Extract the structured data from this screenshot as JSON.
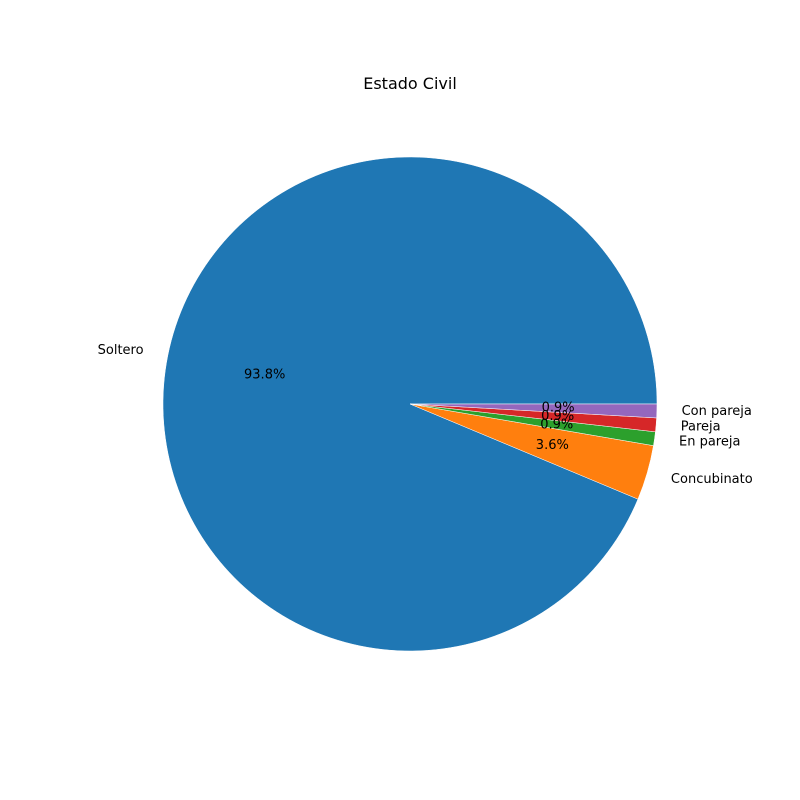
{
  "chart_data": {
    "type": "pie",
    "title": "Estado Civil",
    "start_angle_deg": 0,
    "direction": "counterclockwise",
    "slices": [
      {
        "label": "Soltero",
        "value": 93.8,
        "pct_label": "93.8%",
        "color": "#1f77b4"
      },
      {
        "label": "Concubinato",
        "value": 3.6,
        "pct_label": "3.6%",
        "color": "#ff7f0e"
      },
      {
        "label": "En pareja",
        "value": 0.9,
        "pct_label": "0.9%",
        "color": "#2ca02c"
      },
      {
        "label": "Pareja",
        "value": 0.9,
        "pct_label": "0.9%",
        "color": "#d62728"
      },
      {
        "label": "Con pareja",
        "value": 0.9,
        "pct_label": "0.9%",
        "color": "#9467bd"
      }
    ]
  }
}
